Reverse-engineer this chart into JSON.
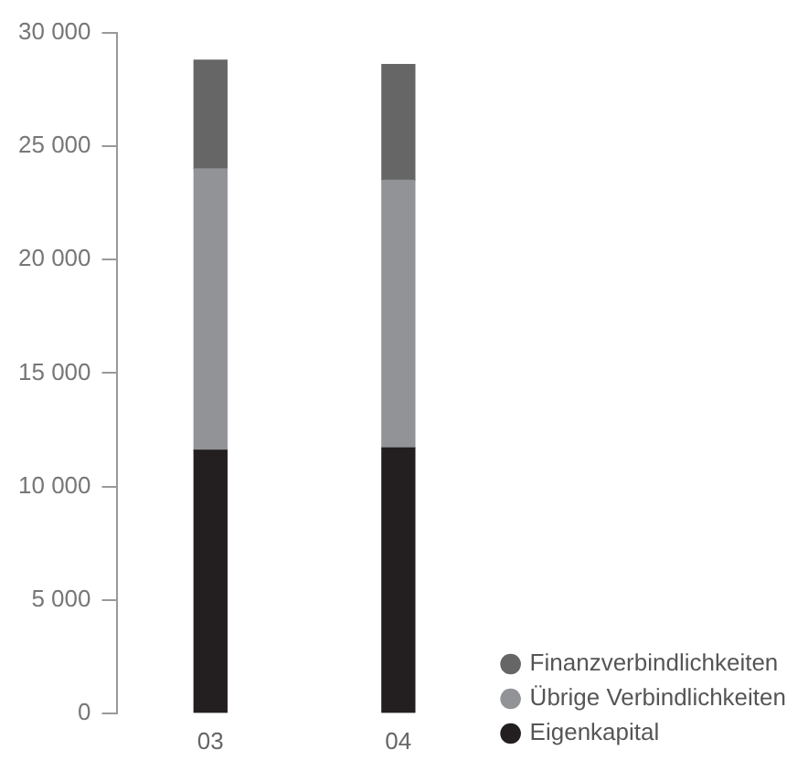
{
  "chart_data": {
    "type": "bar",
    "stacked": true,
    "categories": [
      "03",
      "04"
    ],
    "series": [
      {
        "name": "Eigenkapital",
        "color": "#231f20",
        "values": [
          11600,
          11700
        ]
      },
      {
        "name": "Übrige Verbindlichkeiten",
        "color": "#929396",
        "values": [
          12400,
          11800
        ]
      },
      {
        "name": "Finanzverbindlichkeiten",
        "color": "#666667",
        "values": [
          4800,
          5100
        ]
      }
    ],
    "ylim": [
      0,
      30000
    ],
    "yticks": [
      {
        "value": 0,
        "label": "0"
      },
      {
        "value": 5000,
        "label": "5 000"
      },
      {
        "value": 10000,
        "label": "10 000"
      },
      {
        "value": 15000,
        "label": "15 000"
      },
      {
        "value": 20000,
        "label": "20 000"
      },
      {
        "value": 25000,
        "label": "25 000"
      },
      {
        "value": 30000,
        "label": "30 000"
      }
    ],
    "grid": false,
    "legend": "bottom right",
    "marker": "circle"
  }
}
